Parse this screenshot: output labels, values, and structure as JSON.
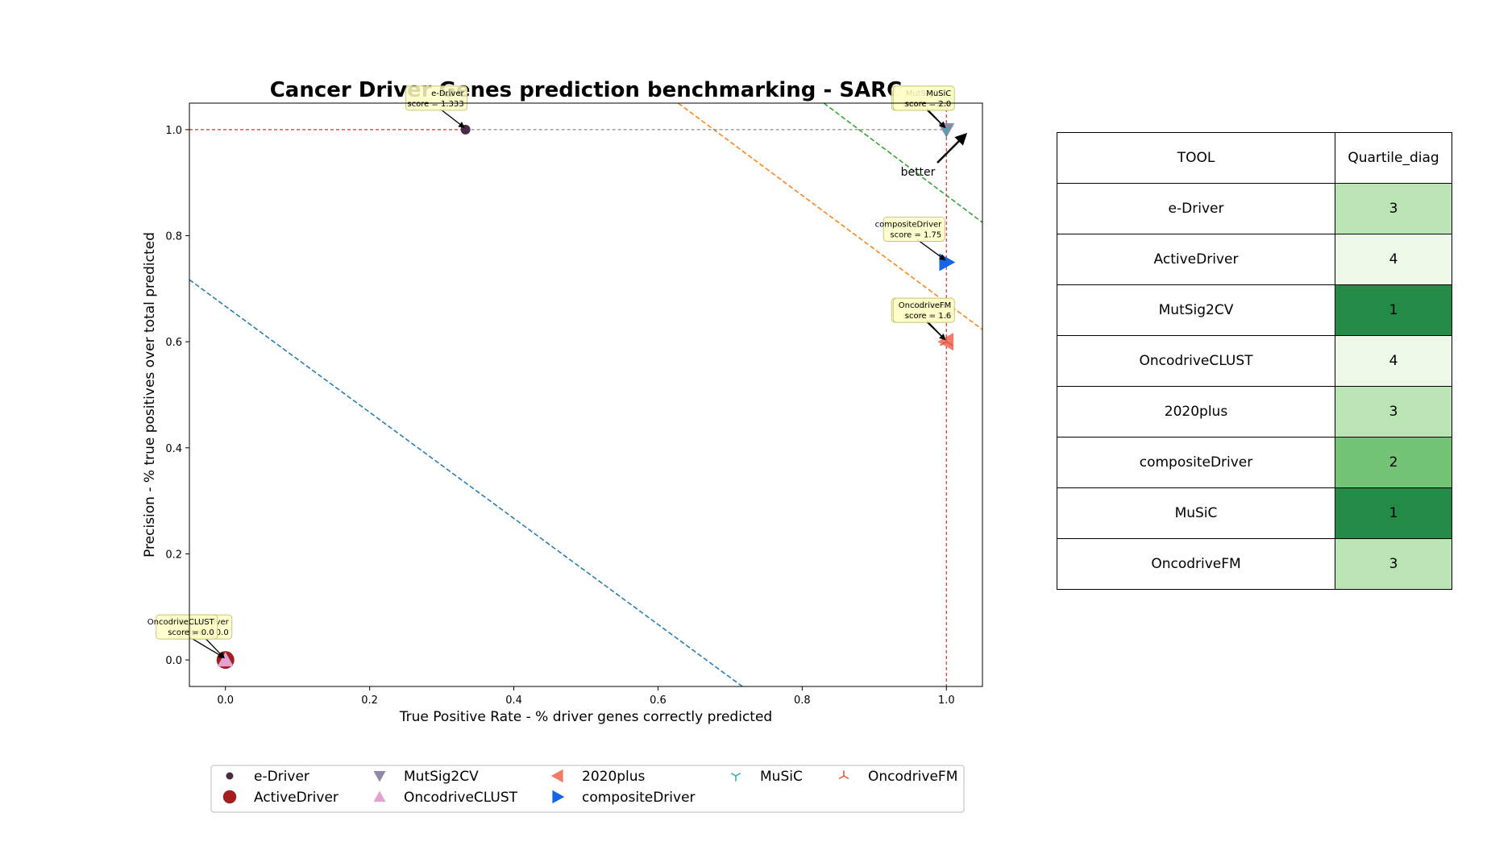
{
  "chart_data": {
    "type": "scatter",
    "title": "Cancer Driver Genes prediction benchmarking - SARC",
    "xlabel": "True Positive Rate - % driver genes correctly predicted",
    "ylabel": "Precision - % true positives over total predicted",
    "xlim": [
      -0.05,
      1.05
    ],
    "ylim": [
      -0.05,
      1.05
    ],
    "xticks": [
      "0.0",
      "0.2",
      "0.4",
      "0.6",
      "0.8",
      "1.0"
    ],
    "yticks": [
      "0.0",
      "0.2",
      "0.4",
      "0.6",
      "0.8",
      "1.0"
    ],
    "grid": false,
    "better_label": "better",
    "series": [
      {
        "name": "e-Driver",
        "x": 0.333,
        "y": 1.0,
        "marker": "circle-small",
        "color": "#4b2a47",
        "annotation": [
          "e-Driver",
          "score = 1.333"
        ]
      },
      {
        "name": "ActiveDriver",
        "x": 0.0,
        "y": 0.0,
        "marker": "circle",
        "color": "#a31e1e",
        "annotation": [
          "ActiveDriver",
          "score = 0.0"
        ]
      },
      {
        "name": "MutSig2CV",
        "x": 1.0,
        "y": 1.0,
        "marker": "triangle-down",
        "color": "#9188a8",
        "annotation": [
          "MutSig2CV",
          "score = 2.0"
        ]
      },
      {
        "name": "OncodriveCLUST",
        "x": 0.0,
        "y": 0.0,
        "marker": "triangle-up",
        "color": "#e3a1d4",
        "annotation": [
          "OncodriveCLUST",
          "score = 0.0"
        ]
      },
      {
        "name": "2020plus",
        "x": 1.0,
        "y": 0.6,
        "marker": "triangle-left",
        "color": "#f57a67",
        "annotation": [
          "2020plus",
          "score = 1.6"
        ]
      },
      {
        "name": "compositeDriver",
        "x": 1.0,
        "y": 0.75,
        "marker": "triangle-right",
        "color": "#1466e6",
        "annotation": [
          "compositeDriver",
          "score = 1.75"
        ]
      },
      {
        "name": "MuSiC",
        "x": 1.0,
        "y": 1.0,
        "marker": "tri-down",
        "color": "#26b3a8",
        "annotation": [
          "MuSiC",
          "score = 2.0"
        ]
      },
      {
        "name": "OncodriveFM",
        "x": 1.0,
        "y": 0.6,
        "marker": "tri-up",
        "color": "#d9593a",
        "annotation": [
          "OncodriveFM",
          "score = 1.6"
        ]
      }
    ],
    "pareto_front": {
      "color": "#e03030",
      "points": [
        [
          -0.05,
          1.0
        ],
        [
          0.333,
          1.0
        ]
      ],
      "vertical_x": 1.0
    },
    "reference_line": {
      "color": "#888888",
      "points": [
        [
          0.333,
          1.0
        ],
        [
          1.0,
          1.0
        ]
      ]
    },
    "quartile_lines": [
      {
        "color": "#1f77b4",
        "points": [
          [
            -0.05,
            0.717
          ],
          [
            0.717,
            -0.05
          ]
        ]
      },
      {
        "color": "#ff7f0e",
        "points": [
          [
            0.628,
            1.05
          ],
          [
            1.05,
            0.623
          ]
        ]
      },
      {
        "color": "#2ca02c",
        "points": [
          [
            0.83,
            1.05
          ],
          [
            1.05,
            0.825
          ]
        ]
      }
    ]
  },
  "table": {
    "headers": [
      "TOOL",
      "Quartile_diag"
    ],
    "rows": [
      {
        "tool": "e-Driver",
        "quartile": "3",
        "color": "#bae4b3"
      },
      {
        "tool": "ActiveDriver",
        "quartile": "4",
        "color": "#edf8e9"
      },
      {
        "tool": "MutSig2CV",
        "quartile": "1",
        "color": "#238b45"
      },
      {
        "tool": "OncodriveCLUST",
        "quartile": "4",
        "color": "#edf8e9"
      },
      {
        "tool": "2020plus",
        "quartile": "3",
        "color": "#bae4b3"
      },
      {
        "tool": "compositeDriver",
        "quartile": "2",
        "color": "#74c476"
      },
      {
        "tool": "MuSiC",
        "quartile": "1",
        "color": "#238b45"
      },
      {
        "tool": "OncodriveFM",
        "quartile": "3",
        "color": "#bae4b3"
      }
    ]
  }
}
